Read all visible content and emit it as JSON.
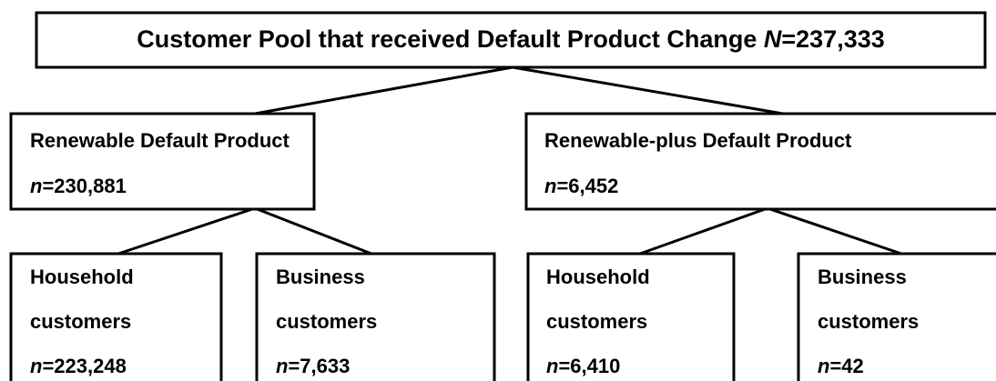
{
  "root": {
    "label": "Customer Pool that received Default Product Change",
    "count": "N=237,333"
  },
  "nodes": [
    {
      "label": "Renewable Default Product",
      "count": "n=230,881"
    },
    {
      "label": "Renewable-plus Default Product",
      "count": "n=6,452"
    },
    {
      "label": "Household",
      "label2": "customers",
      "count": "n=223,248"
    },
    {
      "label": "Business",
      "label2": "customers",
      "count": "n=7,633"
    },
    {
      "label": "Household",
      "label2": "customers",
      "count": "n=6,410"
    },
    {
      "label": "Business",
      "label2": "customers",
      "count": "n=42"
    }
  ]
}
